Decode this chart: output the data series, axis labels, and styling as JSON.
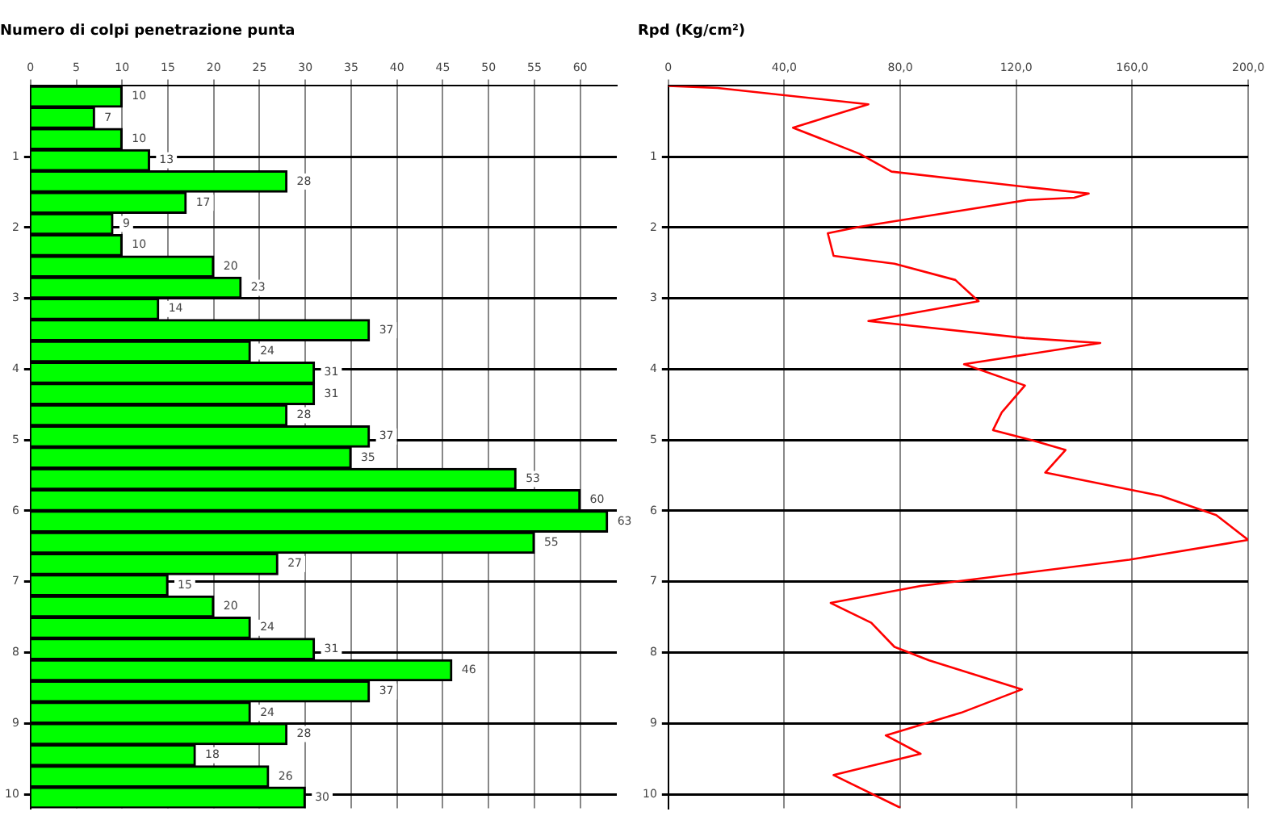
{
  "chart_data": [
    {
      "type": "bar",
      "orientation": "horizontal",
      "title": "Numero di colpi penetrazione punta",
      "x": [
        0.15,
        0.45,
        0.75,
        1.05,
        1.35,
        1.65,
        1.95,
        2.25,
        2.55,
        2.85,
        3.15,
        3.45,
        3.75,
        4.05,
        4.35,
        4.65,
        4.95,
        5.25,
        5.55,
        5.85,
        6.15,
        6.45,
        6.75,
        7.05,
        7.35,
        7.65,
        7.95,
        8.25,
        8.55,
        8.85,
        9.15,
        9.45,
        9.75,
        10.05
      ],
      "values": [
        10,
        7,
        10,
        13,
        28,
        17,
        9,
        10,
        20,
        23,
        14,
        37,
        24,
        31,
        31,
        28,
        37,
        35,
        53,
        60,
        63,
        55,
        27,
        15,
        20,
        24,
        31,
        46,
        37,
        24,
        28,
        18,
        26,
        30
      ],
      "color": "#00ff00",
      "data_labels": true,
      "xlim": [
        0,
        64
      ],
      "xticks": [
        0,
        5,
        10,
        15,
        20,
        25,
        30,
        35,
        40,
        45,
        50,
        55,
        60
      ],
      "ylim": [
        10.2,
        0
      ],
      "yticks": [
        1,
        2,
        3,
        4,
        5,
        6,
        7,
        8,
        9,
        10
      ],
      "grid": true
    },
    {
      "type": "line",
      "title": "Rpd (Kg/cm²)",
      "series": [
        {
          "color": "#ff0000",
          "x": [
            0,
            17,
            69,
            43,
            66,
            77,
            124,
            145,
            140,
            124,
            66,
            55,
            57,
            78,
            99,
            107,
            69,
            123,
            149,
            102,
            123,
            115,
            112,
            126,
            137,
            130,
            170,
            189,
            200,
            159,
            87,
            56,
            70,
            78,
            90,
            122,
            101,
            75,
            87,
            57,
            80
          ],
          "values": [
            0,
            0.03,
            0.26,
            0.59,
            0.96,
            1.21,
            1.43,
            1.52,
            1.58,
            1.61,
            1.99,
            2.08,
            2.4,
            2.51,
            2.74,
            3.04,
            3.32,
            3.56,
            3.63,
            3.93,
            4.23,
            4.61,
            4.86,
            5.01,
            5.14,
            5.46,
            5.79,
            6.06,
            6.41,
            6.69,
            7.06,
            7.3,
            7.58,
            7.92,
            8.11,
            8.52,
            8.85,
            9.17,
            9.43,
            9.73,
            10.19
          ]
        }
      ],
      "marker": "none",
      "line_style": "solid",
      "xlim": [
        0,
        200
      ],
      "xticks": [
        0,
        {
          "value": 40,
          "label": "40,0"
        },
        {
          "value": 80,
          "label": "80,0"
        },
        {
          "value": 120,
          "label": "120,0"
        },
        {
          "value": 160,
          "label": "160,0"
        },
        {
          "value": 200,
          "label": "200,0"
        }
      ],
      "ylim": [
        10.2,
        0
      ],
      "yticks": [
        1,
        2,
        3,
        4,
        5,
        6,
        7,
        8,
        9,
        10
      ],
      "grid": true
    }
  ]
}
